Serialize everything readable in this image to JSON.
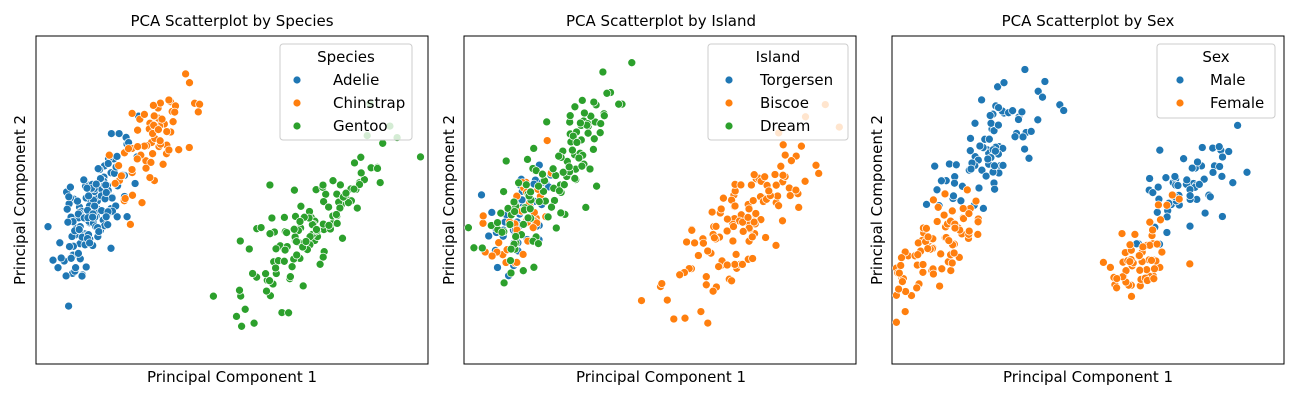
{
  "chart_data": [
    {
      "type": "scatter",
      "title": "PCA Scatterplot by Species",
      "xlabel": "Principal Component 1",
      "ylabel": "Principal Component 2",
      "xlim": [
        -2.3,
        3.0
      ],
      "ylim": [
        -1.8,
        1.8
      ],
      "xticks": false,
      "yticks": false,
      "grid": false,
      "legend": {
        "title": "Species",
        "placement": "top-right"
      },
      "series": [
        {
          "name": "Adelie",
          "color": "#1f77b4",
          "seed": 11,
          "clusters": [
            {
              "n": 150,
              "cx": -1.55,
              "cy": -0.15,
              "sx": 0.22,
              "sy": 0.33,
              "rho": 0.65
            }
          ]
        },
        {
          "name": "Chinstrap",
          "color": "#ff7f0e",
          "seed": 23,
          "clusters": [
            {
              "n": 68,
              "cx": -0.75,
              "cy": 0.6,
              "sx": 0.3,
              "sy": 0.4,
              "rho": 0.7
            }
          ]
        },
        {
          "name": "Gentoo",
          "color": "#2ca02c",
          "seed": 37,
          "clusters": [
            {
              "n": 124,
              "cx": 1.45,
              "cy": -0.25,
              "sx": 0.5,
              "sy": 0.45,
              "rho": 0.8
            }
          ]
        }
      ]
    },
    {
      "type": "scatter",
      "title": "PCA Scatterplot by Island",
      "xlabel": "Principal Component 1",
      "ylabel": "Principal Component 2",
      "xlim": [
        -2.3,
        3.0
      ],
      "ylim": [
        -1.8,
        1.8
      ],
      "xticks": false,
      "yticks": false,
      "grid": false,
      "legend": {
        "title": "Island",
        "placement": "top-right"
      },
      "series": [
        {
          "name": "Torgersen",
          "color": "#1f77b4",
          "seed": 41,
          "clusters": [
            {
              "n": 52,
              "cx": -1.5,
              "cy": -0.15,
              "sx": 0.22,
              "sy": 0.3,
              "rho": 0.6
            }
          ]
        },
        {
          "name": "Biscoe",
          "color": "#ff7f0e",
          "seed": 53,
          "clusters": [
            {
              "n": 124,
              "cx": 1.45,
              "cy": -0.25,
              "sx": 0.5,
              "sy": 0.45,
              "rho": 0.8
            },
            {
              "n": 40,
              "cx": -1.55,
              "cy": -0.2,
              "sx": 0.25,
              "sy": 0.3,
              "rho": 0.6
            }
          ]
        },
        {
          "name": "Dream",
          "color": "#2ca02c",
          "seed": 67,
          "clusters": [
            {
              "n": 56,
              "cx": -1.55,
              "cy": -0.15,
              "sx": 0.28,
              "sy": 0.35,
              "rho": 0.6
            },
            {
              "n": 68,
              "cx": -0.75,
              "cy": 0.6,
              "sx": 0.3,
              "sy": 0.4,
              "rho": 0.7
            }
          ]
        }
      ]
    },
    {
      "type": "scatter",
      "title": "PCA Scatterplot by Sex",
      "xlabel": "Principal Component 1",
      "ylabel": "Principal Component 2",
      "xlim": [
        -2.3,
        3.0
      ],
      "ylim": [
        -1.8,
        1.8
      ],
      "xticks": false,
      "yticks": false,
      "grid": false,
      "legend": {
        "title": "Sex",
        "placement": "top-right"
      },
      "series": [
        {
          "name": "Male",
          "color": "#1f77b4",
          "seed": 79,
          "clusters": [
            {
              "n": 85,
              "cx": -0.95,
              "cy": 0.55,
              "sx": 0.35,
              "sy": 0.35,
              "rho": 0.7
            },
            {
              "n": 62,
              "cx": 1.75,
              "cy": 0.15,
              "sx": 0.35,
              "sy": 0.3,
              "rho": 0.7
            }
          ]
        },
        {
          "name": "Female",
          "color": "#ff7f0e",
          "seed": 83,
          "clusters": [
            {
              "n": 85,
              "cx": -1.75,
              "cy": -0.55,
              "sx": 0.3,
              "sy": 0.3,
              "rho": 0.6
            },
            {
              "n": 60,
              "cx": 1.05,
              "cy": -0.65,
              "sx": 0.3,
              "sy": 0.3,
              "rho": 0.7
            }
          ]
        }
      ]
    }
  ]
}
